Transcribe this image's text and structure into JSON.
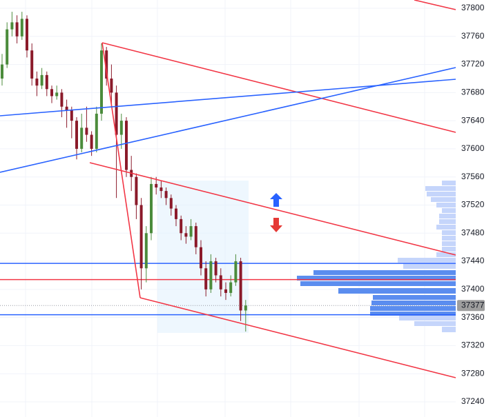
{
  "chart_data": {
    "type": "candlestick",
    "ylim": [
      37240,
      37800
    ],
    "yticks": [
      37240,
      37280,
      37320,
      37360,
      37400,
      37440,
      37480,
      37520,
      37560,
      37600,
      37640,
      37680,
      37720,
      37760,
      37800
    ],
    "grid": true,
    "up_color": "#4b8b3b",
    "down_color": "#8b1a2a",
    "open": [
      37700,
      37720,
      37770,
      37780,
      37760,
      37785,
      37740,
      37700,
      37690,
      37705,
      37685,
      37675,
      37680,
      37660,
      37655,
      37640,
      37600,
      37630,
      37620,
      37600,
      37650,
      37740,
      37700,
      37680,
      37620,
      37640,
      37570,
      37560,
      37520,
      37430,
      37480,
      37550,
      37545,
      37540,
      37530,
      37515,
      37500,
      37480,
      37475,
      37490,
      37460,
      37430,
      37400,
      37440,
      37420,
      37400,
      37395,
      37410,
      37440,
      37370
    ],
    "high": [
      37735,
      37780,
      37795,
      37790,
      37795,
      37790,
      37750,
      37710,
      37715,
      37710,
      37690,
      37690,
      37685,
      37670,
      37660,
      37645,
      37650,
      37660,
      37625,
      37660,
      37750,
      37745,
      37720,
      37690,
      37650,
      37645,
      37590,
      37565,
      37530,
      37490,
      37560,
      37560,
      37555,
      37545,
      37535,
      37520,
      37505,
      37490,
      37500,
      37495,
      37470,
      37440,
      37450,
      37445,
      37430,
      37410,
      37420,
      37450,
      37445,
      37385
    ],
    "low": [
      37690,
      37715,
      37760,
      37750,
      37755,
      37730,
      37690,
      37675,
      37685,
      37675,
      37665,
      37670,
      37645,
      37630,
      37615,
      37585,
      37595,
      37610,
      37590,
      37595,
      37640,
      37690,
      37660,
      37530,
      37600,
      37560,
      37540,
      37500,
      37400,
      37410,
      37470,
      37535,
      37530,
      37520,
      37505,
      37490,
      37470,
      37465,
      37470,
      37450,
      37420,
      37390,
      37395,
      37410,
      37390,
      37385,
      37390,
      37405,
      37355,
      37340
    ],
    "close": [
      37720,
      37770,
      37780,
      37760,
      37785,
      37740,
      37700,
      37690,
      37705,
      37685,
      37675,
      37680,
      37660,
      37655,
      37640,
      37600,
      37630,
      37620,
      37600,
      37650,
      37740,
      37700,
      37680,
      37620,
      37640,
      37570,
      37560,
      37520,
      37430,
      37480,
      37550,
      37545,
      37540,
      37530,
      37515,
      37500,
      37480,
      37475,
      37490,
      37460,
      37430,
      37400,
      37440,
      37420,
      37400,
      37395,
      37410,
      37440,
      37370,
      37377
    ],
    "levels": [
      {
        "price": 37437,
        "color": "#2962ff"
      },
      {
        "price": 37414,
        "color": "#f23645"
      },
      {
        "price": 37364,
        "color": "#2962ff"
      }
    ],
    "last_price": 37377
  }
}
